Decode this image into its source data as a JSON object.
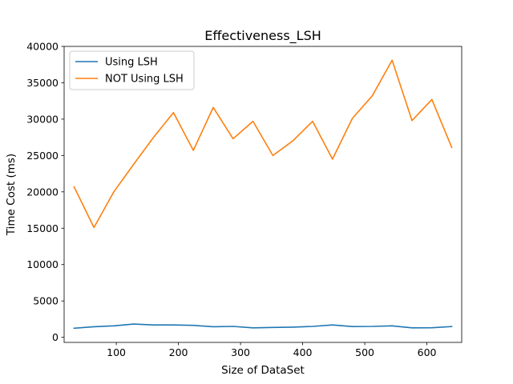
{
  "chart_data": {
    "type": "line",
    "title": "Effectiveness_LSH",
    "xlabel": "Size of DataSet",
    "ylabel": "Time Cost (ms)",
    "xlim": [
      16,
      656
    ],
    "ylim": [
      -700,
      40000
    ],
    "xticks": [
      100,
      200,
      300,
      400,
      500,
      600
    ],
    "yticks": [
      0,
      5000,
      10000,
      15000,
      20000,
      25000,
      30000,
      35000,
      40000
    ],
    "legend_position": "upper left",
    "grid": false,
    "x": [
      32,
      64,
      96,
      128,
      160,
      192,
      224,
      256,
      288,
      320,
      352,
      384,
      416,
      448,
      480,
      512,
      544,
      576,
      608,
      640
    ],
    "series": [
      {
        "name": "Using LSH",
        "color": "#1f77b4",
        "values": [
          1250,
          1450,
          1580,
          1820,
          1700,
          1700,
          1650,
          1450,
          1500,
          1300,
          1350,
          1400,
          1500,
          1700,
          1480,
          1500,
          1580,
          1300,
          1320,
          1480
        ]
      },
      {
        "name": "NOT Using LSH",
        "color": "#ff7f0e",
        "values": [
          20700,
          15100,
          20000,
          23800,
          27500,
          30900,
          25700,
          31600,
          27300,
          29700,
          25000,
          27000,
          29700,
          24500,
          30100,
          33200,
          38100,
          29800,
          32700,
          26100
        ]
      }
    ]
  }
}
